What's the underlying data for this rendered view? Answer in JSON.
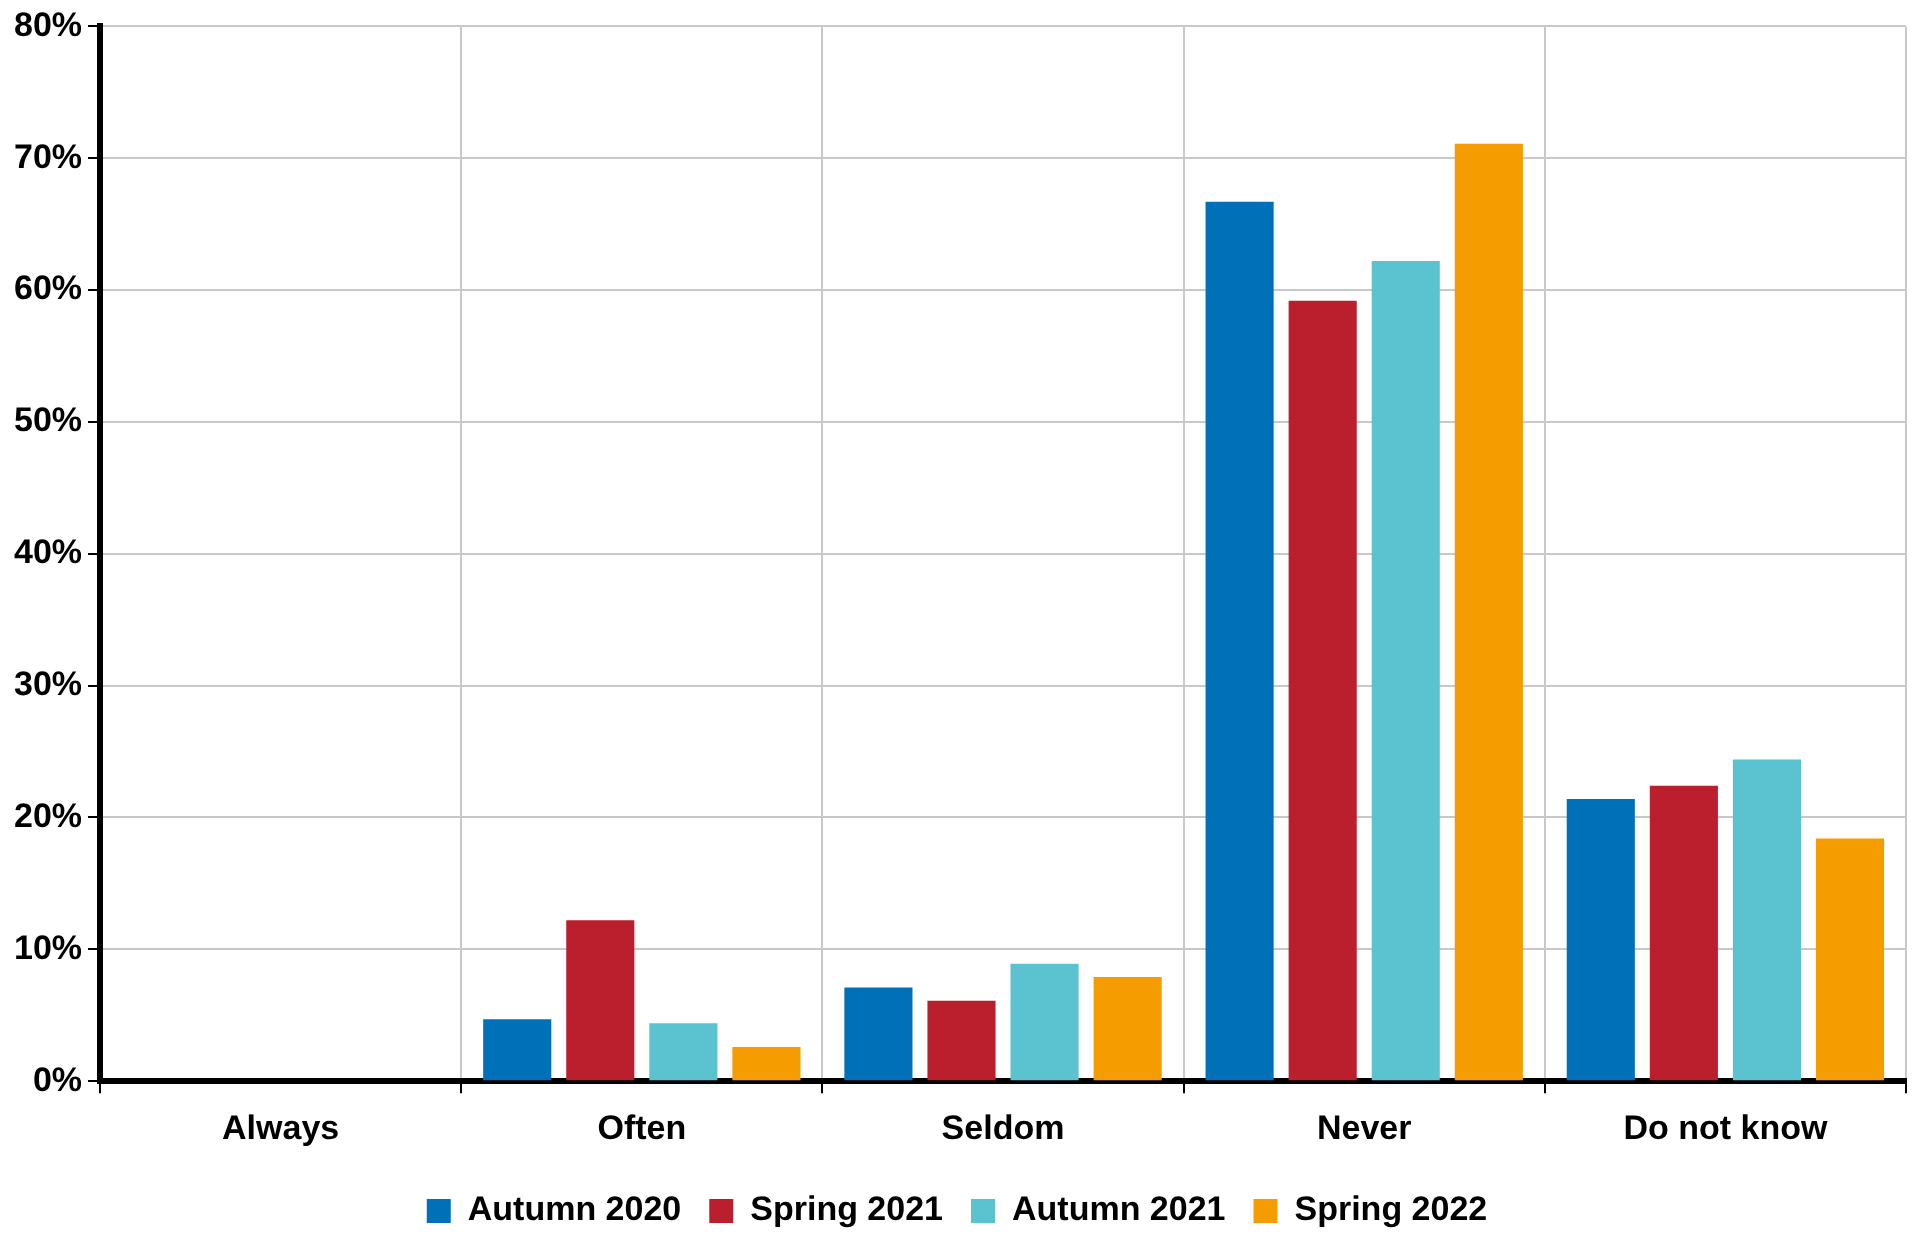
{
  "chart_data": {
    "type": "bar",
    "categories": [
      "Always",
      "Often",
      "Seldom",
      "Never",
      "Do not know"
    ],
    "series": [
      {
        "name": "Autumn 2020",
        "color": "#0070b8",
        "values": [
          0,
          4.7,
          7.1,
          66.7,
          21.4
        ]
      },
      {
        "name": "Spring 2021",
        "color": "#bb1f2d",
        "values": [
          0,
          12.2,
          6.1,
          59.2,
          22.4
        ]
      },
      {
        "name": "Autumn 2021",
        "color": "#5bc2d0",
        "values": [
          0,
          4.4,
          8.9,
          62.2,
          24.4
        ]
      },
      {
        "name": "Spring 2022",
        "color": "#f59c00",
        "values": [
          0,
          2.6,
          7.9,
          71.1,
          18.4
        ]
      }
    ],
    "ylim": [
      0,
      80
    ],
    "yticks": [
      {
        "value": 0,
        "label": "0%"
      },
      {
        "value": 10,
        "label": "10%"
      },
      {
        "value": 20,
        "label": "20%"
      },
      {
        "value": 30,
        "label": "30%"
      },
      {
        "value": 40,
        "label": "40%"
      },
      {
        "value": 50,
        "label": "50%"
      },
      {
        "value": 60,
        "label": "60%"
      },
      {
        "value": 70,
        "label": "70%"
      },
      {
        "value": 80,
        "label": "80%"
      }
    ],
    "grid": true,
    "legend": "bottom"
  }
}
